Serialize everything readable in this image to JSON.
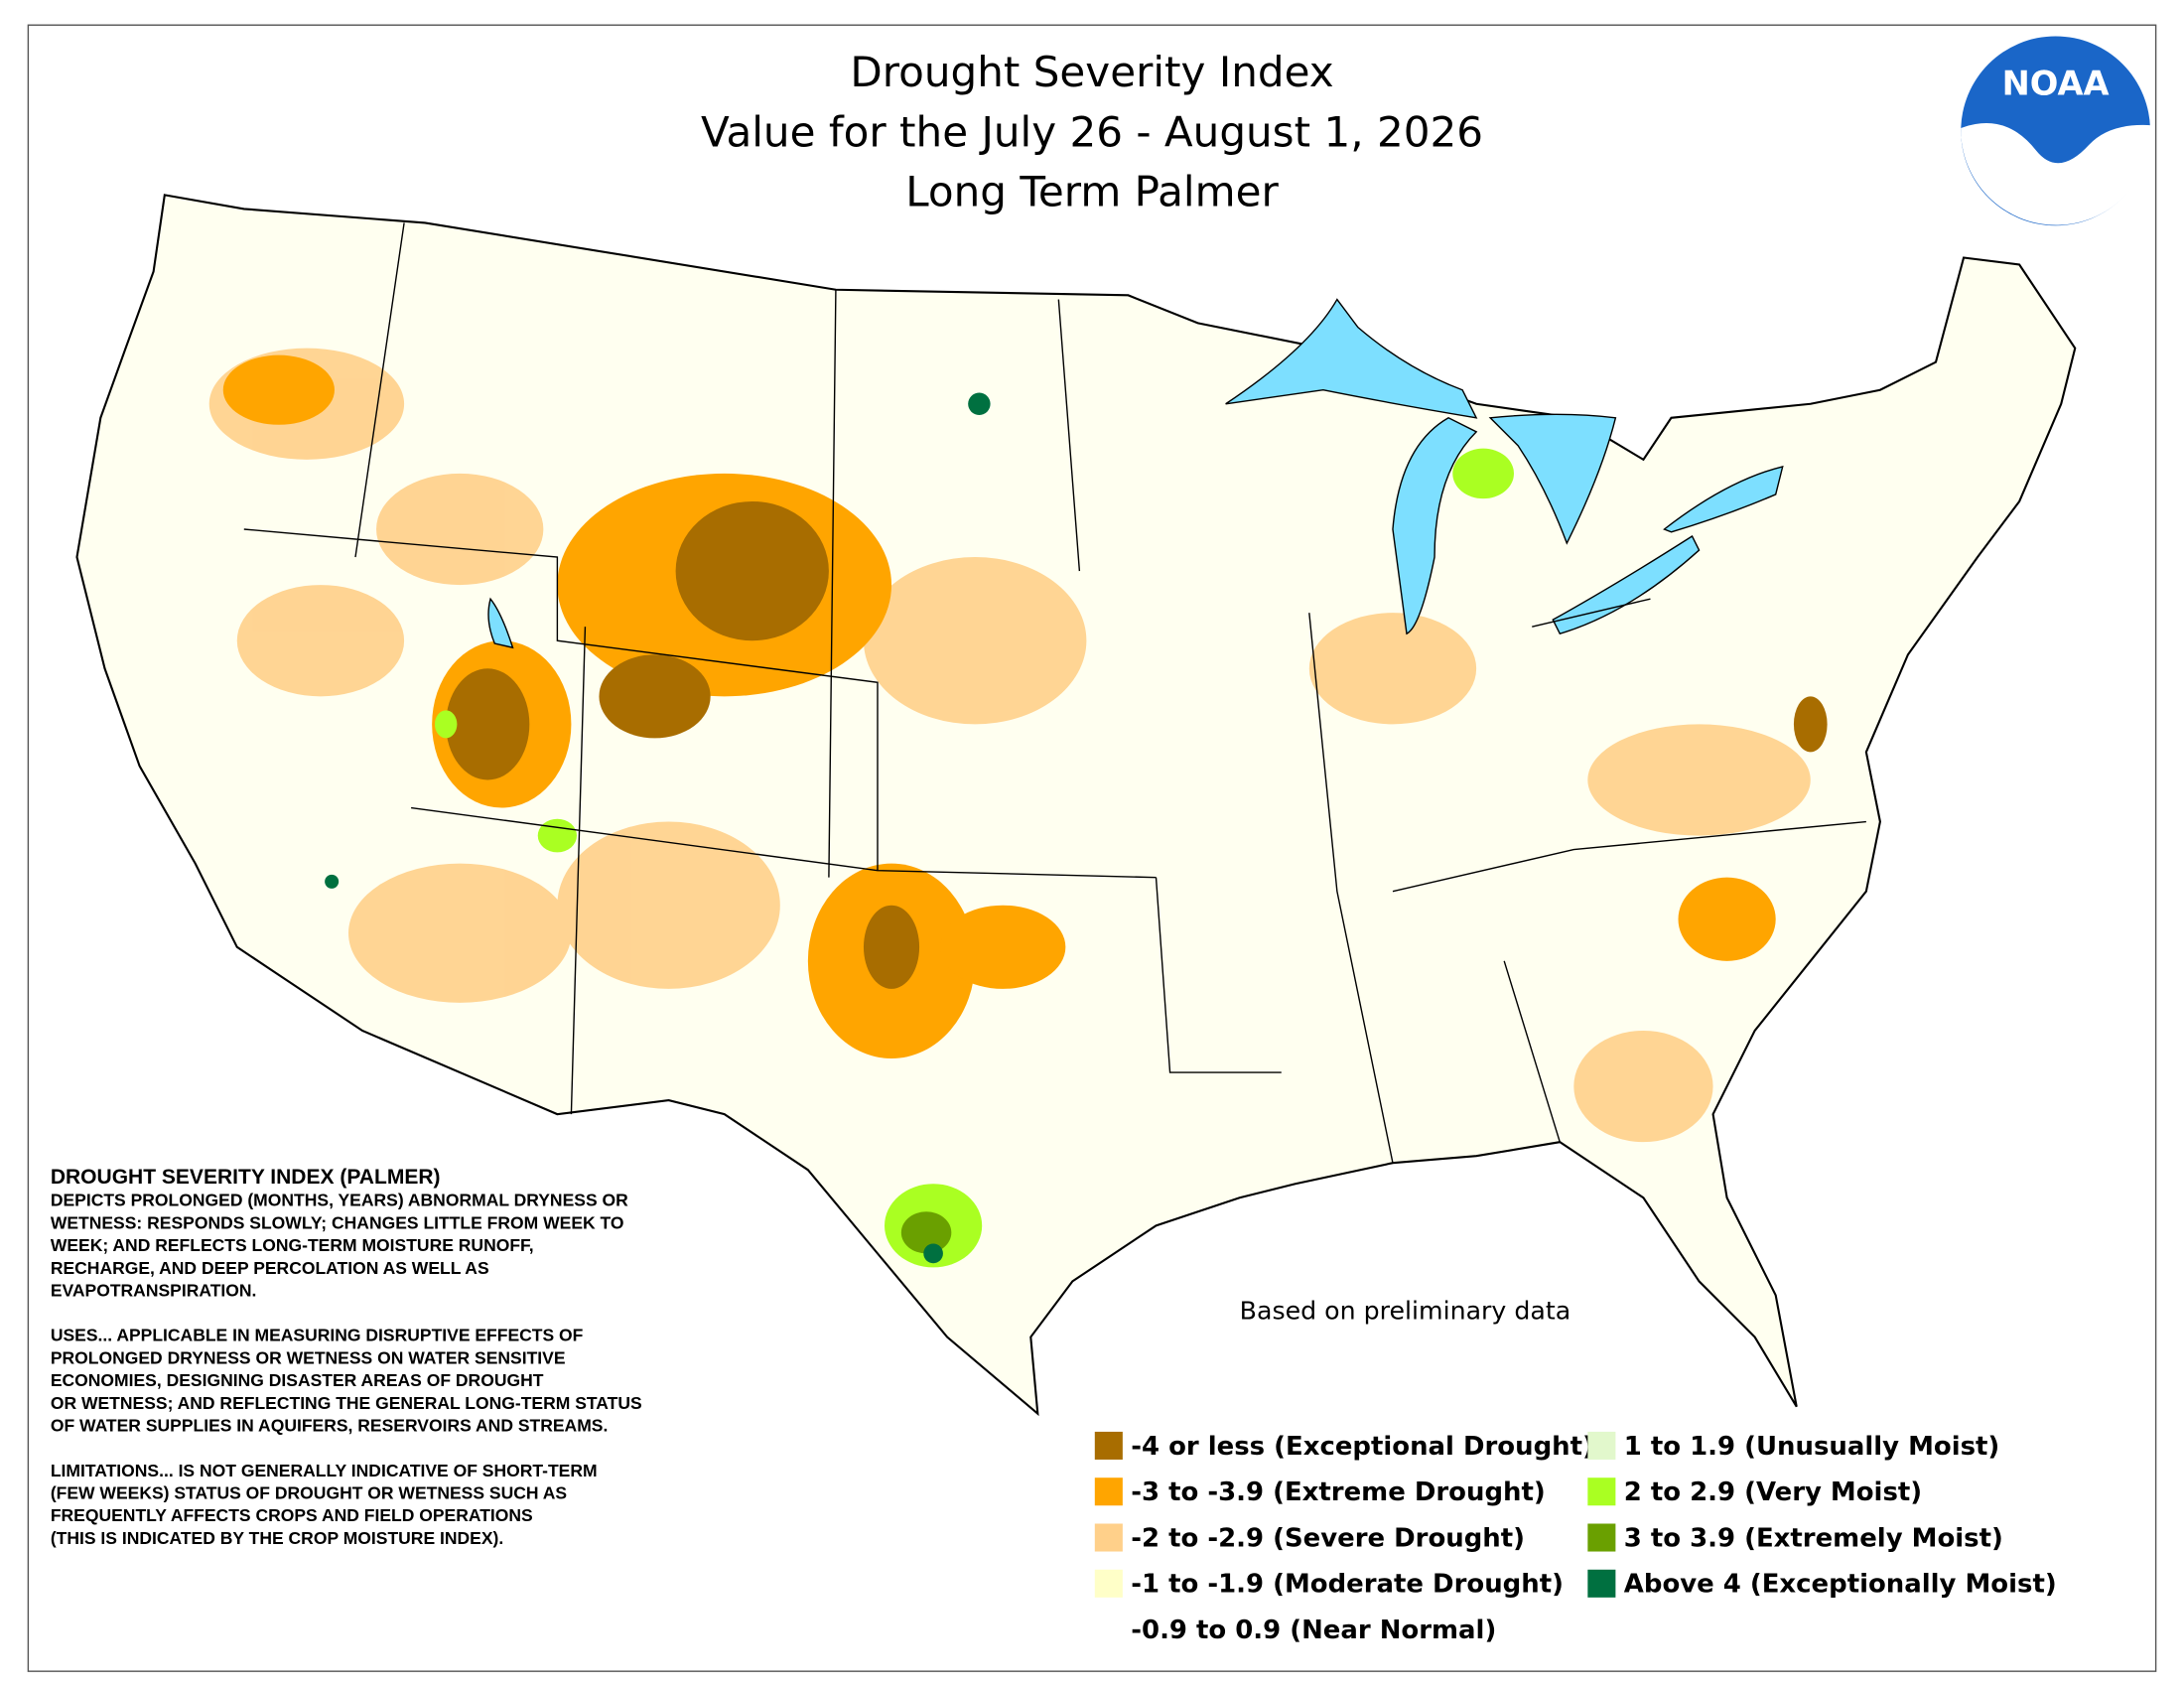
{
  "title": {
    "line1": "Drought Severity Index",
    "line2": "Value for the July 26 - August 1, 2026",
    "line3": "Long Term Palmer"
  },
  "logo": "NOAA",
  "note": "Based on preliminary data",
  "description": {
    "heading": "DROUGHT SEVERITY INDEX (PALMER)",
    "paragraphs": [
      [
        "DEPICTS PROLONGED (MONTHS, YEARS) ABNORMAL DRYNESS OR",
        "WETNESS: RESPONDS SLOWLY; CHANGES LITTLE FROM WEEK TO",
        "WEEK; AND REFLECTS LONG-TERM MOISTURE RUNOFF,",
        "RECHARGE, AND DEEP PERCOLATION AS WELL AS",
        "EVAPOTRANSPIRATION."
      ],
      [
        "USES... APPLICABLE IN MEASURING DISRUPTIVE EFFECTS OF",
        "PROLONGED DRYNESS OR WETNESS ON WATER SENSITIVE",
        "ECONOMIES, DESIGNING DISASTER AREAS OF DROUGHT",
        "OR WETNESS; AND REFLECTING THE GENERAL LONG-TERM STATUS",
        "OF WATER SUPPLIES IN AQUIFERS, RESERVOIRS AND STREAMS."
      ],
      [
        "LIMITATIONS... IS NOT GENERALLY INDICATIVE OF SHORT-TERM",
        "(FEW WEEKS) STATUS OF DROUGHT OR WETNESS SUCH AS",
        "FREQUENTLY AFFECTS CROPS AND FIELD OPERATIONS",
        "(THIS IS INDICATED BY THE CROP MOISTURE INDEX)."
      ]
    ]
  },
  "legend": {
    "columns": [
      [
        {
          "label": "-4 or less (Exceptional Drought)",
          "color": "#a86d00"
        },
        {
          "label": "-3 to -3.9 (Extreme Drought)",
          "color": "#ffa500"
        },
        {
          "label": "-2 to -2.9 (Severe Drought)",
          "color": "#ffd08a"
        },
        {
          "label": "-1 to -1.9 (Moderate Drought)",
          "color": "#ffffc8"
        },
        {
          "label": "-0.9 to 0.9 (Near Normal)",
          "color": "#ffffff"
        }
      ],
      [
        {
          "label": "1 to 1.9 (Unusually Moist)",
          "color": "#e2f8cc"
        },
        {
          "label": "2 to 2.9 (Very Moist)",
          "color": "#aaff22"
        },
        {
          "label": "3 to 3.9 (Extremely Moist)",
          "color": "#6aa000"
        },
        {
          "label": "Above 4 (Exceptionally Moist)",
          "color": "#007040"
        }
      ]
    ]
  }
}
